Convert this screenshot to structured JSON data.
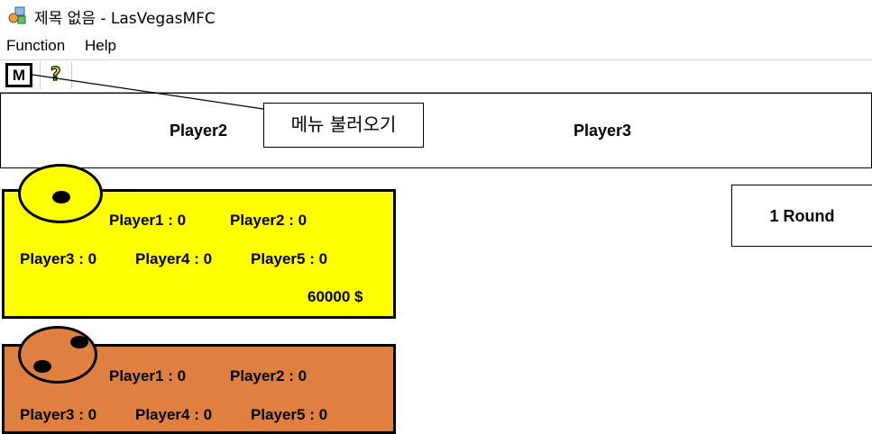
{
  "window": {
    "title": "제목 없음 - LasVegasMFC",
    "icon": "app-icon"
  },
  "menu": {
    "items": [
      "Function",
      "Help"
    ]
  },
  "toolbar": {
    "m_label": "M",
    "help_label": "?",
    "tooltip": "메뉴 불러오기"
  },
  "top_players": {
    "left": "Player2",
    "right": "Player3"
  },
  "round": {
    "label": "1 Round"
  },
  "cards": [
    {
      "color": "#ffff00",
      "dice_pips": 1,
      "scores": {
        "p1": "Player1 : 0",
        "p2": "Player2 : 0",
        "p3": "Player3 : 0",
        "p4": "Player4 : 0",
        "p5": "Player5 : 0"
      },
      "money": "60000 $"
    },
    {
      "color": "#e08040",
      "dice_pips": 2,
      "scores": {
        "p1": "Player1 : 0",
        "p2": "Player2 : 0",
        "p3": "Player3 : 0",
        "p4": "Player4 : 0",
        "p5": "Player5 : 0"
      }
    }
  ]
}
